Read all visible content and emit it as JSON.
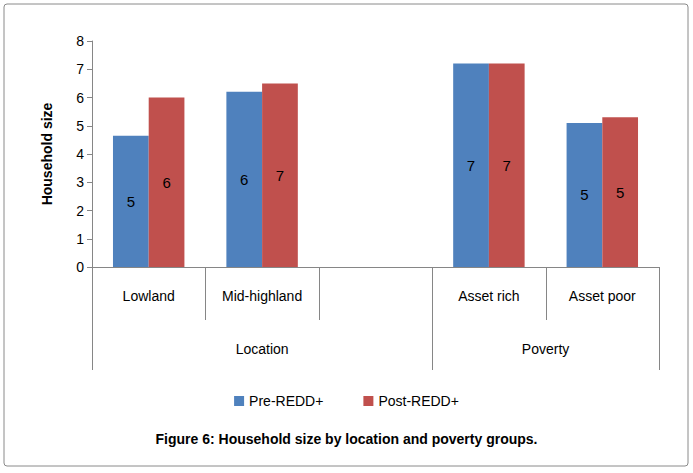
{
  "chart_data": {
    "type": "bar",
    "title": "Figure 6: Household size by location and poverty groups.",
    "y_label": "Household size",
    "categories": [
      "Lowland",
      "Mid-highland",
      null,
      "Asset rich",
      "Asset poor"
    ],
    "category_groups": [
      "Location",
      "Location",
      "Location",
      "Poverty",
      "Poverty"
    ],
    "series": [
      {
        "name": "Pre-REDD+",
        "color": "#4f81bd",
        "values": [
          4.65,
          6.2,
          null,
          7.2,
          5.1
        ],
        "value_labels": [
          "5",
          "6",
          null,
          "7",
          "5"
        ]
      },
      {
        "name": "Post-REDD+",
        "color": "#c0504d",
        "values": [
          6.0,
          6.5,
          null,
          7.2,
          5.3
        ],
        "value_labels": [
          "6",
          "7",
          null,
          "7",
          "5"
        ]
      }
    ],
    "ylim": [
      0,
      8
    ],
    "yticks": [
      0,
      1,
      2,
      3,
      4,
      5,
      6,
      7,
      8
    ],
    "grid": false,
    "legend": "bottom",
    "data_labels": true
  }
}
